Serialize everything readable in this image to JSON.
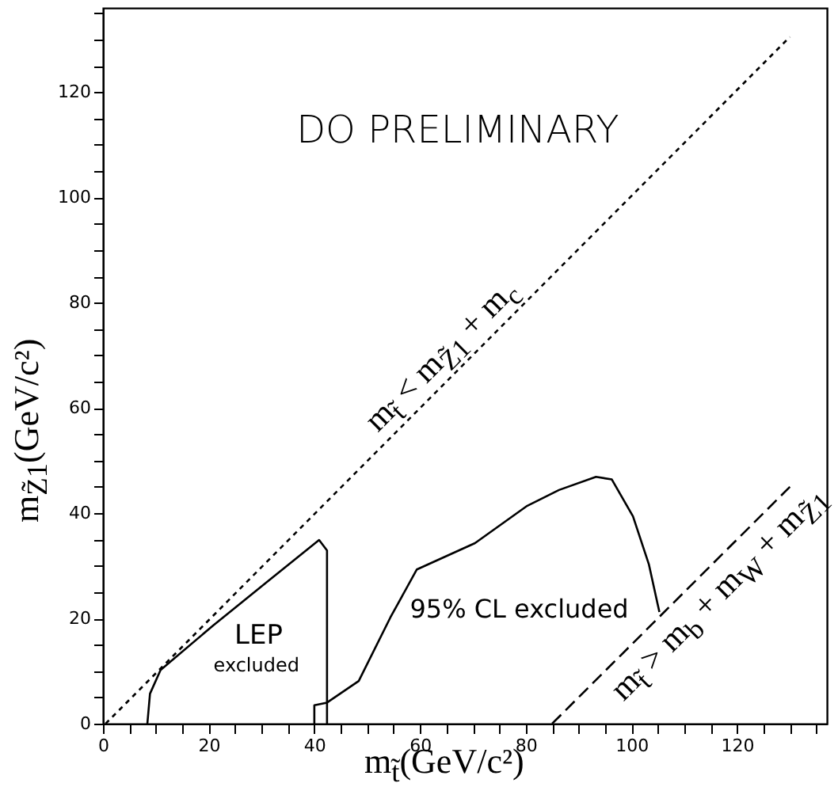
{
  "chart_data": {
    "type": "line",
    "xlabel": "m$_{t̃}$(GeV/c²)",
    "ylabel": "m$_{Z̃1}$(GeV/c²)",
    "xlim": [
      0,
      137
    ],
    "ylim": [
      0,
      136
    ],
    "xticks": [
      0,
      {
        "value": 5,
        "label": null
      },
      {
        "value": 10,
        "label": null
      },
      {
        "value": 15,
        "label": null
      },
      20,
      {
        "value": 25,
        "label": null
      },
      {
        "value": 30,
        "label": null
      },
      {
        "value": 35,
        "label": null
      },
      40,
      {
        "value": 45,
        "label": null
      },
      {
        "value": 50,
        "label": null
      },
      {
        "value": 55,
        "label": null
      },
      60,
      {
        "value": 65,
        "label": null
      },
      {
        "value": 70,
        "label": null
      },
      {
        "value": 75,
        "label": null
      },
      80,
      {
        "value": 85,
        "label": null
      },
      {
        "value": 90,
        "label": null
      },
      {
        "value": 95,
        "label": null
      },
      100,
      {
        "value": 105,
        "label": null
      },
      {
        "value": 110,
        "label": null
      },
      {
        "value": 115,
        "label": null
      },
      120,
      {
        "value": 125,
        "label": null
      },
      {
        "value": 130,
        "label": null
      },
      {
        "value": 135,
        "label": null
      }
    ],
    "yticks": [
      0,
      {
        "value": 5,
        "label": null
      },
      {
        "value": 10,
        "label": null
      },
      {
        "value": 15,
        "label": null
      },
      20,
      {
        "value": 25,
        "label": null
      },
      {
        "value": 30,
        "label": null
      },
      {
        "value": 35,
        "label": null
      },
      40,
      {
        "value": 45,
        "label": null
      },
      {
        "value": 50,
        "label": null
      },
      {
        "value": 55,
        "label": null
      },
      60,
      {
        "value": 65,
        "label": null
      },
      {
        "value": 70,
        "label": null
      },
      {
        "value": 75,
        "label": null
      },
      80,
      {
        "value": 85,
        "label": null
      },
      {
        "value": 90,
        "label": null
      },
      {
        "value": 95,
        "label": null
      },
      100,
      {
        "value": 105,
        "label": null
      },
      {
        "value": 110,
        "label": null
      },
      {
        "value": 115,
        "label": null
      },
      120,
      {
        "value": 125,
        "label": null
      },
      {
        "value": 130,
        "label": null
      },
      {
        "value": 135,
        "label": null
      }
    ],
    "grid": false,
    "marker": "none",
    "series": [
      {
        "color": "#000000",
        "line_style": "dotted",
        "x": [
          0.5,
          130
        ],
        "values": [
          0,
          130.5
        ]
      },
      {
        "color": "#000000",
        "line_style": "dashed",
        "x": [
          85,
          130
        ],
        "values": [
          0,
          45
        ]
      },
      {
        "color": "#000000",
        "line_style": "solid",
        "x": [
          8.4,
          8.9,
          10.9,
          20.9,
          30.9,
          40.9,
          42.4,
          42.4
        ],
        "values": [
          0,
          5.7,
          10.2,
          18.7,
          26.8,
          34.9,
          32.9,
          0
        ]
      },
      {
        "color": "#000000",
        "line_style": "solid",
        "x": [
          40,
          40,
          42.4,
          48.4,
          54.4,
          59.4,
          70.4,
          80.3,
          86.3,
          93.3,
          96.3,
          100.3,
          103.3,
          105.3
        ],
        "values": [
          0,
          3.5,
          4,
          8.1,
          20.2,
          29.3,
          34.3,
          41.4,
          44.4,
          46.9,
          46.4,
          39.4,
          30.3,
          21.2
        ]
      }
    ],
    "annotations": [
      "DO PRELIMINARY",
      "LEP",
      "excluded",
      "95% CL excluded",
      "m$_{t̃}$ < m$_{Z̃1}$ + m$_{c}$",
      "m$_{t̃}$ > m$_{b}$ + m$_{W}$ + m$_{Z̃1}$"
    ]
  }
}
